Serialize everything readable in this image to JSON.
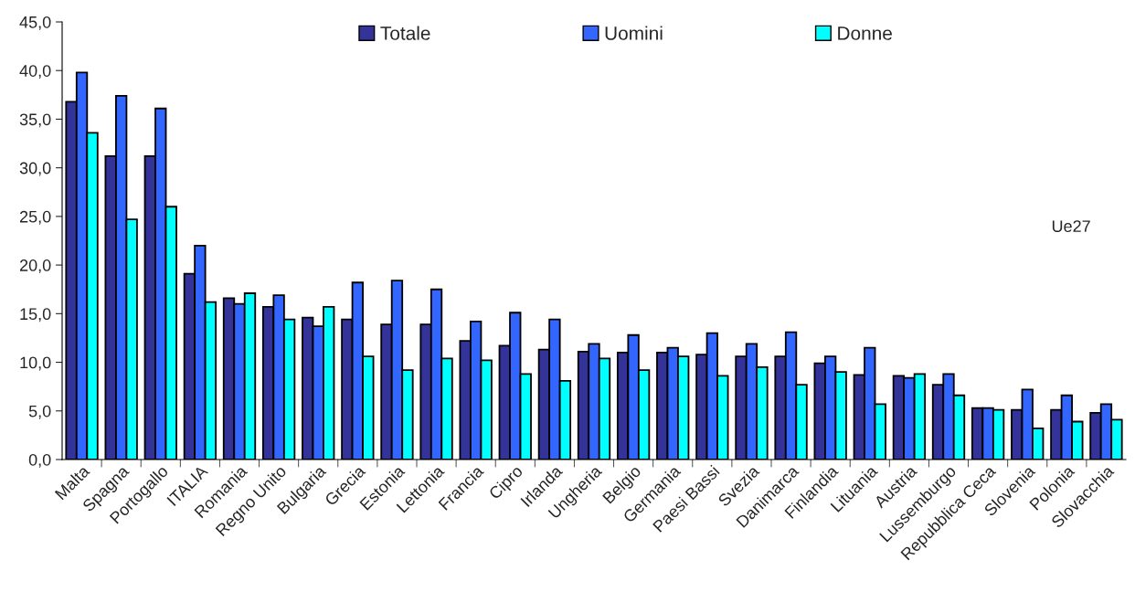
{
  "chart_data": {
    "type": "bar",
    "categories": [
      "Malta",
      "Spagna",
      "Portogallo",
      "ITALIA",
      "Romania",
      "Regno Unito",
      "Bulgaria",
      "Grecia",
      "Estonia",
      "Lettonia",
      "Francia",
      "Cipro",
      "Irlanda",
      "Ungheria",
      "Belgio",
      "Germania",
      "Paesi Bassi",
      "Svezia",
      "Danimarca",
      "Finlandia",
      "Lituania",
      "Austria",
      "Lussemburgo",
      "Repubblica Ceca",
      "Slovenia",
      "Polonia",
      "Slovacchia"
    ],
    "series": [
      {
        "name": "Totale",
        "color": "#333399",
        "values": [
          36.8,
          31.2,
          31.2,
          19.1,
          16.6,
          15.7,
          14.6,
          14.4,
          13.9,
          13.9,
          12.2,
          11.7,
          11.3,
          11.1,
          11.0,
          11.0,
          10.8,
          10.6,
          10.6,
          9.9,
          8.7,
          8.6,
          7.7,
          5.3,
          5.1,
          5.1,
          4.8
        ]
      },
      {
        "name": "Uomini",
        "color": "#3366ff",
        "values": [
          39.8,
          37.4,
          36.1,
          22.0,
          16.0,
          16.9,
          13.7,
          18.2,
          18.4,
          17.5,
          14.2,
          15.1,
          14.4,
          11.9,
          12.8,
          11.5,
          13.0,
          11.9,
          13.1,
          10.6,
          11.5,
          8.4,
          8.8,
          5.3,
          7.2,
          6.6,
          5.7
        ]
      },
      {
        "name": "Donne",
        "color": "#00ffff",
        "values": [
          33.6,
          24.7,
          26.0,
          16.2,
          17.1,
          14.4,
          15.7,
          10.6,
          9.2,
          10.4,
          10.2,
          8.8,
          8.1,
          10.4,
          9.2,
          10.6,
          8.6,
          9.5,
          7.7,
          9.0,
          5.7,
          8.8,
          6.6,
          5.1,
          3.2,
          3.9,
          4.1
        ]
      }
    ],
    "ylim": [
      0,
      45
    ],
    "yticks": [
      {
        "value": 0,
        "label": "0,0"
      },
      {
        "value": 5,
        "label": "5,0"
      },
      {
        "value": 10,
        "label": "10,0"
      },
      {
        "value": 15,
        "label": "15,0"
      },
      {
        "value": 20,
        "label": "20,0"
      },
      {
        "value": 25,
        "label": "25,0"
      },
      {
        "value": 30,
        "label": "30,0"
      },
      {
        "value": 35,
        "label": "35,0"
      },
      {
        "value": 40,
        "label": "40,0"
      },
      {
        "value": 45,
        "label": "45,0"
      }
    ],
    "annotations": [
      "Ue27"
    ],
    "legend": "top",
    "grid": false
  }
}
